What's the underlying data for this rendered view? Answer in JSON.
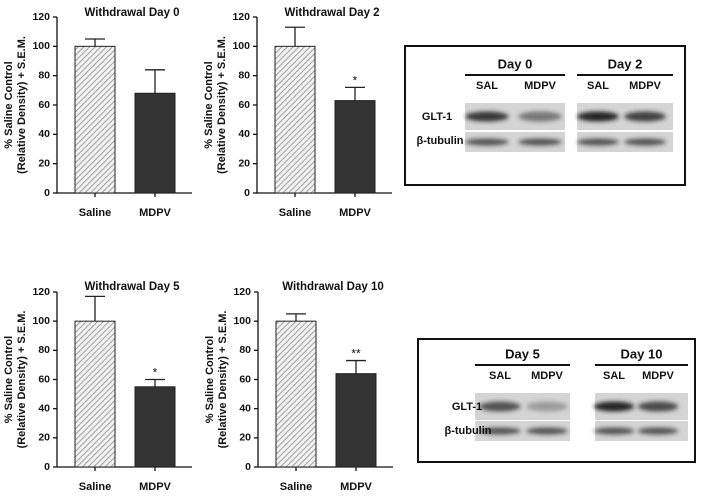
{
  "chart_data": [
    {
      "type": "bar",
      "title": "Withdrawal Day 0",
      "y_label": [
        "% Saline Control",
        "(Relative Density) + S.E.M."
      ],
      "categories": [
        "Saline",
        "MDPV"
      ],
      "values": [
        100,
        68
      ],
      "errors": [
        5,
        16
      ],
      "annotations": [
        null,
        null
      ],
      "patterns": [
        "hatch",
        "solid"
      ],
      "colors": [
        "#8a8a8a",
        "#333333"
      ],
      "ylim": [
        0,
        120
      ],
      "yticks": [
        0,
        20,
        40,
        60,
        80,
        100,
        120
      ]
    },
    {
      "type": "bar",
      "title": "Withdrawal Day 2",
      "y_label": [
        "% Saline Control",
        "(Relative Density) + S.E.M."
      ],
      "categories": [
        "Saline",
        "MDPV"
      ],
      "values": [
        100,
        63
      ],
      "errors": [
        13,
        9
      ],
      "annotations": [
        null,
        "*"
      ],
      "patterns": [
        "hatch",
        "solid"
      ],
      "colors": [
        "#8a8a8a",
        "#333333"
      ],
      "ylim": [
        0,
        120
      ],
      "yticks": [
        0,
        20,
        40,
        60,
        80,
        100,
        120
      ]
    },
    {
      "type": "bar",
      "title": "Withdrawal Day 5",
      "y_label": [
        "% Saline Control",
        "(Relative Density) + S.E.M."
      ],
      "categories": [
        "Saline",
        "MDPV"
      ],
      "values": [
        100,
        55
      ],
      "errors": [
        17,
        5
      ],
      "annotations": [
        null,
        "*"
      ],
      "patterns": [
        "hatch",
        "solid"
      ],
      "colors": [
        "#8a8a8a",
        "#333333"
      ],
      "ylim": [
        0,
        120
      ],
      "yticks": [
        0,
        20,
        40,
        60,
        80,
        100,
        120
      ]
    },
    {
      "type": "bar",
      "title": "Withdrawal Day 10",
      "y_label": [
        "% Saline Control",
        "(Relative Density) + S.E.M."
      ],
      "categories": [
        "Saline",
        "MDPV"
      ],
      "values": [
        100,
        64
      ],
      "errors": [
        5,
        9
      ],
      "annotations": [
        null,
        "**"
      ],
      "patterns": [
        "hatch",
        "solid"
      ],
      "colors": [
        "#8a8a8a",
        "#333333"
      ],
      "ylim": [
        0,
        120
      ],
      "yticks": [
        0,
        20,
        40,
        60,
        80,
        100,
        120
      ]
    }
  ],
  "blots": [
    {
      "groups": [
        {
          "label": "Day 0",
          "lanes": [
            "SAL",
            "MDPV"
          ]
        },
        {
          "label": "Day 2",
          "lanes": [
            "SAL",
            "MDPV"
          ]
        }
      ],
      "rows": [
        "GLT-1",
        "β-tubulin"
      ]
    },
    {
      "groups": [
        {
          "label": "Day 5",
          "lanes": [
            "SAL",
            "MDPV"
          ]
        },
        {
          "label": "Day 10",
          "lanes": [
            "SAL",
            "MDPV"
          ]
        }
      ],
      "rows": [
        "GLT-1",
        "β-tubulin"
      ]
    }
  ]
}
